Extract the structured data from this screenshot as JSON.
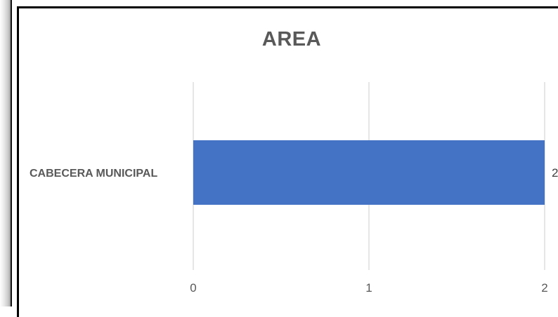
{
  "chart_data": {
    "type": "bar",
    "orientation": "horizontal",
    "title": "AREA",
    "categories": [
      "CABECERA MUNICIPAL"
    ],
    "series": [
      {
        "values": [
          2
        ],
        "color": "#4472C4"
      }
    ],
    "data_labels": [
      "2"
    ],
    "xlim": [
      0,
      2
    ],
    "x_ticks": [
      0,
      1,
      2
    ],
    "x_tick_labels": [
      "0",
      "1",
      "2"
    ],
    "grid": true,
    "legend": "none"
  }
}
